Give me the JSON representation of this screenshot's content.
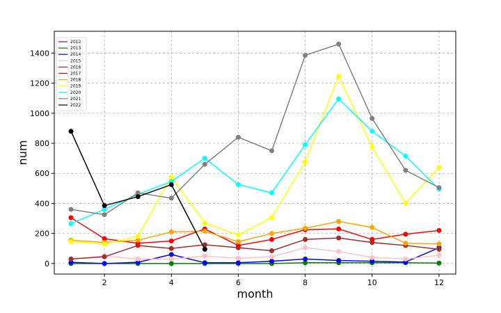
{
  "chart_data": {
    "type": "line",
    "title": "",
    "xlabel": "month",
    "ylabel": "num",
    "xlim": [
      0.5,
      12.5
    ],
    "ylim": [
      -70,
      1545
    ],
    "xticks": [
      2,
      4,
      6,
      8,
      10,
      12
    ],
    "yticks": [
      0,
      200,
      400,
      600,
      800,
      1000,
      1200,
      1400
    ],
    "grid": true,
    "legend_position": "top-left",
    "series": [
      {
        "name": "2012",
        "color": "#800080",
        "x": [],
        "values": []
      },
      {
        "name": "2013",
        "color": "#008000",
        "x": [
          1,
          2,
          3,
          4,
          5,
          6,
          7,
          8,
          9,
          10,
          11,
          12
        ],
        "values": [
          0,
          0,
          0,
          0,
          0,
          0,
          0,
          5,
          5,
          5,
          5,
          3
        ]
      },
      {
        "name": "2014",
        "color": "#0000ff",
        "x": [
          1,
          2,
          3,
          4,
          5,
          6,
          7,
          8,
          9,
          10,
          11,
          12
        ],
        "values": [
          8,
          0,
          8,
          60,
          5,
          5,
          15,
          30,
          20,
          15,
          10,
          105
        ]
      },
      {
        "name": "2015",
        "color": "#ffc0cb",
        "x": [
          1,
          2,
          3,
          4,
          5,
          6,
          7,
          8,
          9,
          10,
          11,
          12
        ],
        "values": [
          30,
          50,
          30,
          30,
          50,
          35,
          45,
          105,
          80,
          40,
          30,
          55
        ]
      },
      {
        "name": "2016",
        "color": "#a52a2a",
        "x": [
          1,
          2,
          3,
          4,
          5,
          6,
          7,
          8,
          9,
          10,
          11,
          12
        ],
        "values": [
          30,
          45,
          120,
          100,
          125,
          105,
          85,
          160,
          170,
          140,
          120,
          95
        ]
      },
      {
        "name": "2017",
        "color": "#ff0000",
        "x": [
          1,
          2,
          3,
          4,
          5,
          6,
          7,
          8,
          9,
          10,
          11,
          12
        ],
        "values": [
          305,
          165,
          135,
          150,
          230,
          120,
          160,
          225,
          230,
          160,
          195,
          220
        ]
      },
      {
        "name": "2018",
        "color": "#ffa500",
        "x": [
          1,
          2,
          3,
          4,
          5,
          6,
          7,
          8,
          9,
          10,
          11,
          12
        ],
        "values": [
          155,
          140,
          155,
          210,
          215,
          145,
          200,
          235,
          280,
          240,
          135,
          130
        ]
      },
      {
        "name": "2019",
        "color": "#ffff00",
        "x": [
          1,
          2,
          3,
          4,
          5,
          6,
          7,
          8,
          9,
          10,
          11,
          12
        ],
        "values": [
          145,
          130,
          180,
          575,
          270,
          190,
          305,
          675,
          1245,
          775,
          400,
          640
        ]
      },
      {
        "name": "2020",
        "color": "#00ffff",
        "x": [
          1,
          2,
          3,
          4,
          5,
          6,
          7,
          8,
          9,
          10,
          11,
          12
        ],
        "values": [
          265,
          360,
          460,
          545,
          700,
          525,
          470,
          790,
          1095,
          880,
          715,
          495
        ]
      },
      {
        "name": "2021",
        "color": "#808080",
        "x": [
          1,
          2,
          3,
          4,
          5,
          6,
          7,
          8,
          9,
          10,
          11,
          12
        ],
        "values": [
          360,
          325,
          470,
          435,
          660,
          840,
          750,
          1385,
          1460,
          965,
          620,
          505
        ]
      },
      {
        "name": "2022",
        "color": "#000000",
        "x": [
          1,
          2,
          3,
          4,
          5
        ],
        "values": [
          880,
          385,
          445,
          525,
          95
        ]
      }
    ]
  }
}
